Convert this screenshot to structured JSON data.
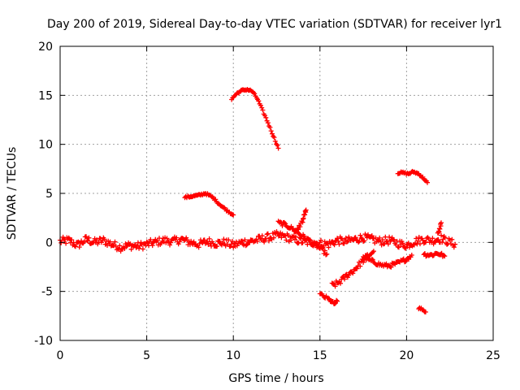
{
  "chart_data": {
    "type": "scatter",
    "title": "Day 200 of 2019, Sidereal Day-to-day VTEC variation (SDTVAR) for receiver lyr1",
    "xlabel": "GPS time / hours",
    "ylabel": "SDTVAR / TECUs",
    "xlim": [
      0,
      25
    ],
    "ylim": [
      -10,
      20
    ],
    "xticks": [
      0,
      5,
      10,
      15,
      20,
      25
    ],
    "yticks": [
      -10,
      -5,
      0,
      5,
      10,
      15,
      20
    ],
    "xtick_labels": [
      "0",
      "5",
      "10",
      "15",
      "20",
      "25"
    ],
    "ytick_labels": [
      "-10",
      "-5",
      "0",
      "5",
      "10",
      "15",
      "20"
    ],
    "grid": true,
    "marker": "+",
    "series": [
      {
        "name": "SDTVAR",
        "color": "#ff0000",
        "segments": [
          {
            "name": "baseline-main",
            "x": [
              0,
              0.5,
              1,
              1.5,
              2,
              2.5,
              3,
              3.5,
              4,
              4.5,
              5,
              5.5,
              6,
              6.5,
              7,
              7.5,
              8,
              8.5,
              9,
              9.5,
              10,
              10.5,
              11,
              11.5,
              12,
              12.5,
              13,
              13.5,
              14,
              14.5,
              15,
              15.5,
              16,
              16.5,
              17,
              17.5,
              18,
              18.5,
              19,
              19.5,
              20,
              20.5,
              21,
              21.5,
              22,
              22.5,
              22.8
            ],
            "y": [
              0.1,
              0.2,
              -0.3,
              0.3,
              0,
              0.2,
              -0.2,
              -0.5,
              -0.3,
              -0.4,
              -0.2,
              0,
              0.2,
              0.1,
              0.3,
              0,
              -0.2,
              0.1,
              -0.1,
              0,
              -0.3,
              0,
              0.1,
              0.3,
              0.5,
              0.7,
              0.6,
              0.3,
              0.1,
              0,
              -0.1,
              -0.2,
              0.2,
              0.1,
              0.3,
              0.5,
              0.3,
              0.1,
              0.2,
              -0.1,
              -0.3,
              0.1,
              0.3,
              0.2,
              0.4,
              0,
              -0.2
            ],
            "jitter": 0.4
          },
          {
            "name": "arc-peak",
            "x": [
              9.9,
              10.2,
              10.5,
              10.8,
              11.1,
              11.4,
              11.7,
              12.0,
              12.3,
              12.6
            ],
            "y": [
              14.6,
              15.2,
              15.5,
              15.6,
              15.4,
              14.6,
              13.4,
              12.2,
              10.9,
              9.6
            ],
            "jitter": 0.1
          },
          {
            "name": "mid-arc",
            "x": [
              7.2,
              7.6,
              8.0,
              8.4,
              8.8,
              9.2,
              9.6,
              10.0
            ],
            "y": [
              4.6,
              4.7,
              4.8,
              5.0,
              4.6,
              3.9,
              3.3,
              2.8
            ],
            "jitter": 0.1
          },
          {
            "name": "late-arc",
            "x": [
              19.5,
              19.8,
              20.1,
              20.4,
              20.7,
              21.0,
              21.2
            ],
            "y": [
              7.1,
              7.1,
              7.0,
              7.2,
              7.0,
              6.5,
              6.1
            ],
            "jitter": 0.1
          },
          {
            "name": "spike-14",
            "x": [
              13.6,
              13.8,
              14.0,
              14.1,
              14.2
            ],
            "y": [
              1.0,
              1.6,
              2.2,
              2.8,
              3.3
            ],
            "jitter": 0.2
          },
          {
            "name": "rising-13",
            "x": [
              12.6,
              13.0,
              13.4,
              13.8,
              14.2,
              14.6,
              15.0,
              15.4
            ],
            "y": [
              2.0,
              1.8,
              1.4,
              0.9,
              0.4,
              -0.1,
              -0.6,
              -1.2
            ],
            "jitter": 0.2
          },
          {
            "name": "dip-15",
            "x": [
              15.0,
              15.3,
              15.6,
              15.8,
              16.0
            ],
            "y": [
              -5.3,
              -5.6,
              -5.9,
              -6.3,
              -6.0
            ],
            "jitter": 0.2
          },
          {
            "name": "recovery",
            "x": [
              15.7,
              16.0,
              16.3,
              16.6,
              16.9,
              17.2,
              17.5,
              17.8,
              18.1
            ],
            "y": [
              -4.4,
              -4.2,
              -3.8,
              -3.3,
              -2.9,
              -2.4,
              -1.8,
              -1.3,
              -0.9
            ],
            "jitter": 0.3
          },
          {
            "name": "low-mid",
            "x": [
              17.5,
              18.0,
              18.5,
              19.0,
              19.5,
              20.0,
              20.3
            ],
            "y": [
              -1.6,
              -1.9,
              -2.3,
              -2.4,
              -2.1,
              -1.7,
              -1.3
            ],
            "jitter": 0.2
          },
          {
            "name": "late-dip",
            "x": [
              20.7,
              20.9,
              21.1
            ],
            "y": [
              -6.7,
              -6.8,
              -7.1
            ],
            "jitter": 0.1
          },
          {
            "name": "late-low",
            "x": [
              21.0,
              21.4,
              21.8,
              22.2
            ],
            "y": [
              -1.2,
              -1.3,
              -1.1,
              -1.4
            ],
            "jitter": 0.2
          },
          {
            "name": "spike-22",
            "x": [
              21.8,
              21.9,
              22.0
            ],
            "y": [
              0.8,
              1.4,
              2.0
            ],
            "jitter": 0.2
          }
        ]
      }
    ]
  }
}
